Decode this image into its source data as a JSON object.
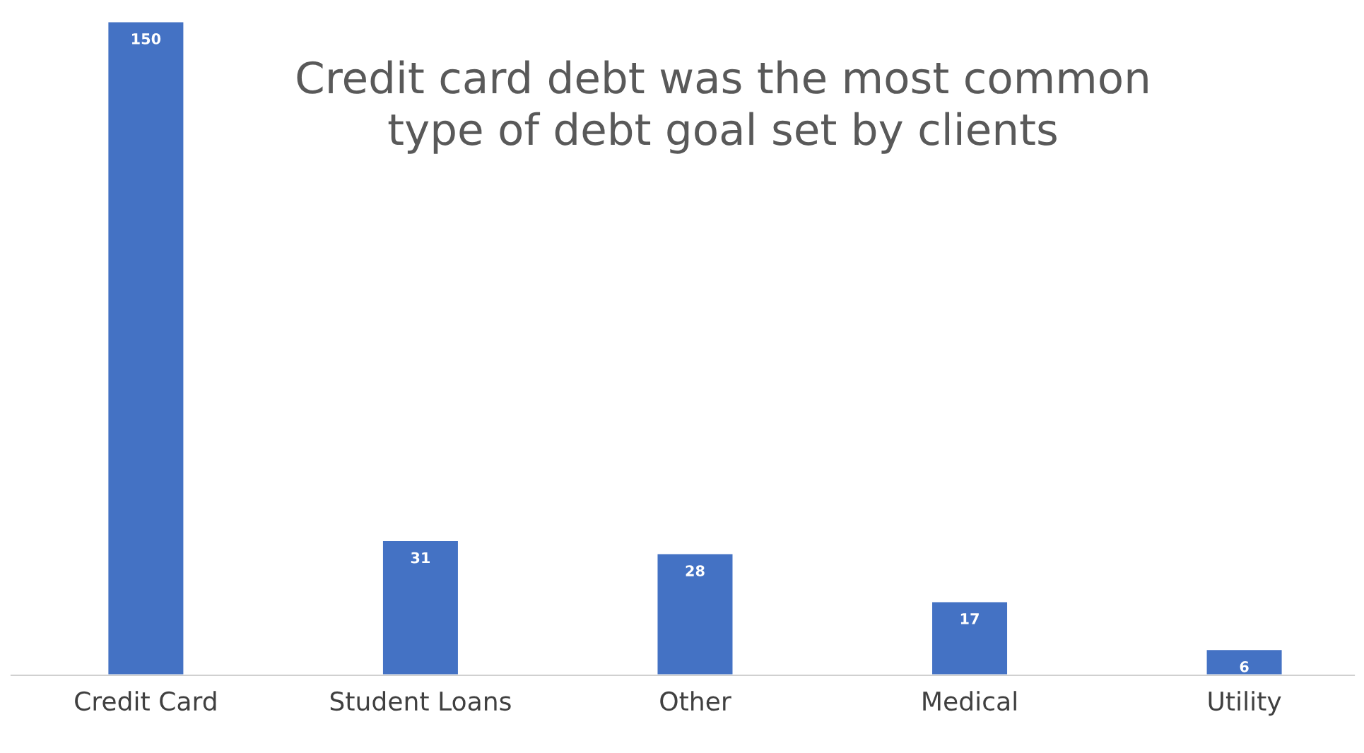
{
  "chart_data": {
    "type": "bar",
    "title": "Credit card debt was the most common\ntype of debt goal set by clients",
    "categories": [
      "Credit Card",
      "Student Loans",
      "Other",
      "Medical",
      "Utility"
    ],
    "values": [
      150,
      31,
      28,
      17,
      6
    ],
    "color": "#4472c4",
    "data_labels": true,
    "grid": false,
    "legend": false
  }
}
